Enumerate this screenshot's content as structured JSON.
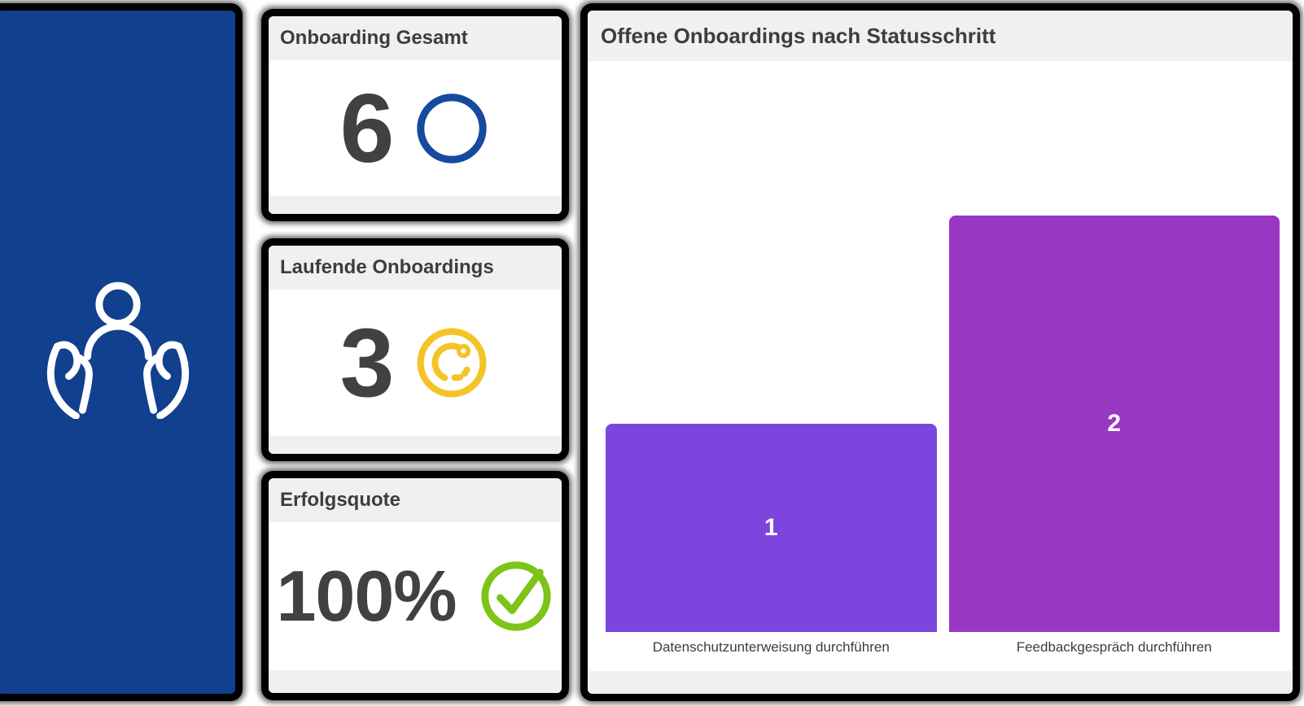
{
  "sidebar": {
    "background_color": "#10408e",
    "icon": "person-in-caring-hands-icon",
    "icon_color": "#ffffff"
  },
  "cards": [
    {
      "title": "Onboarding Gesamt",
      "value": "6",
      "icon": "circle-outline-icon",
      "icon_color": "#164a9e"
    },
    {
      "title": "Laufende Onboardings",
      "value": "3",
      "icon": "in-progress-circle-icon",
      "icon_color": "#f4c427"
    },
    {
      "title": "Erfolgsquote",
      "value": "100%",
      "icon": "check-circle-icon",
      "icon_color": "#7cc417"
    }
  ],
  "chart": {
    "title": "Offene Onboardings nach Statusschritt"
  },
  "chart_data": {
    "type": "bar",
    "title": "Offene Onboardings nach Statusschritt",
    "categories": [
      "Datenschutzunterweisung durchführen",
      "Feedbackgespräch durchführen"
    ],
    "values": [
      1,
      2
    ],
    "value_labels": [
      "1",
      "2"
    ],
    "bar_colors": [
      "#7c45e0",
      "#9838c2"
    ],
    "value_label_color": "#ffffff",
    "ylim": [
      0,
      2
    ],
    "grid": false,
    "legend": false,
    "xlabel": "",
    "ylabel": ""
  }
}
